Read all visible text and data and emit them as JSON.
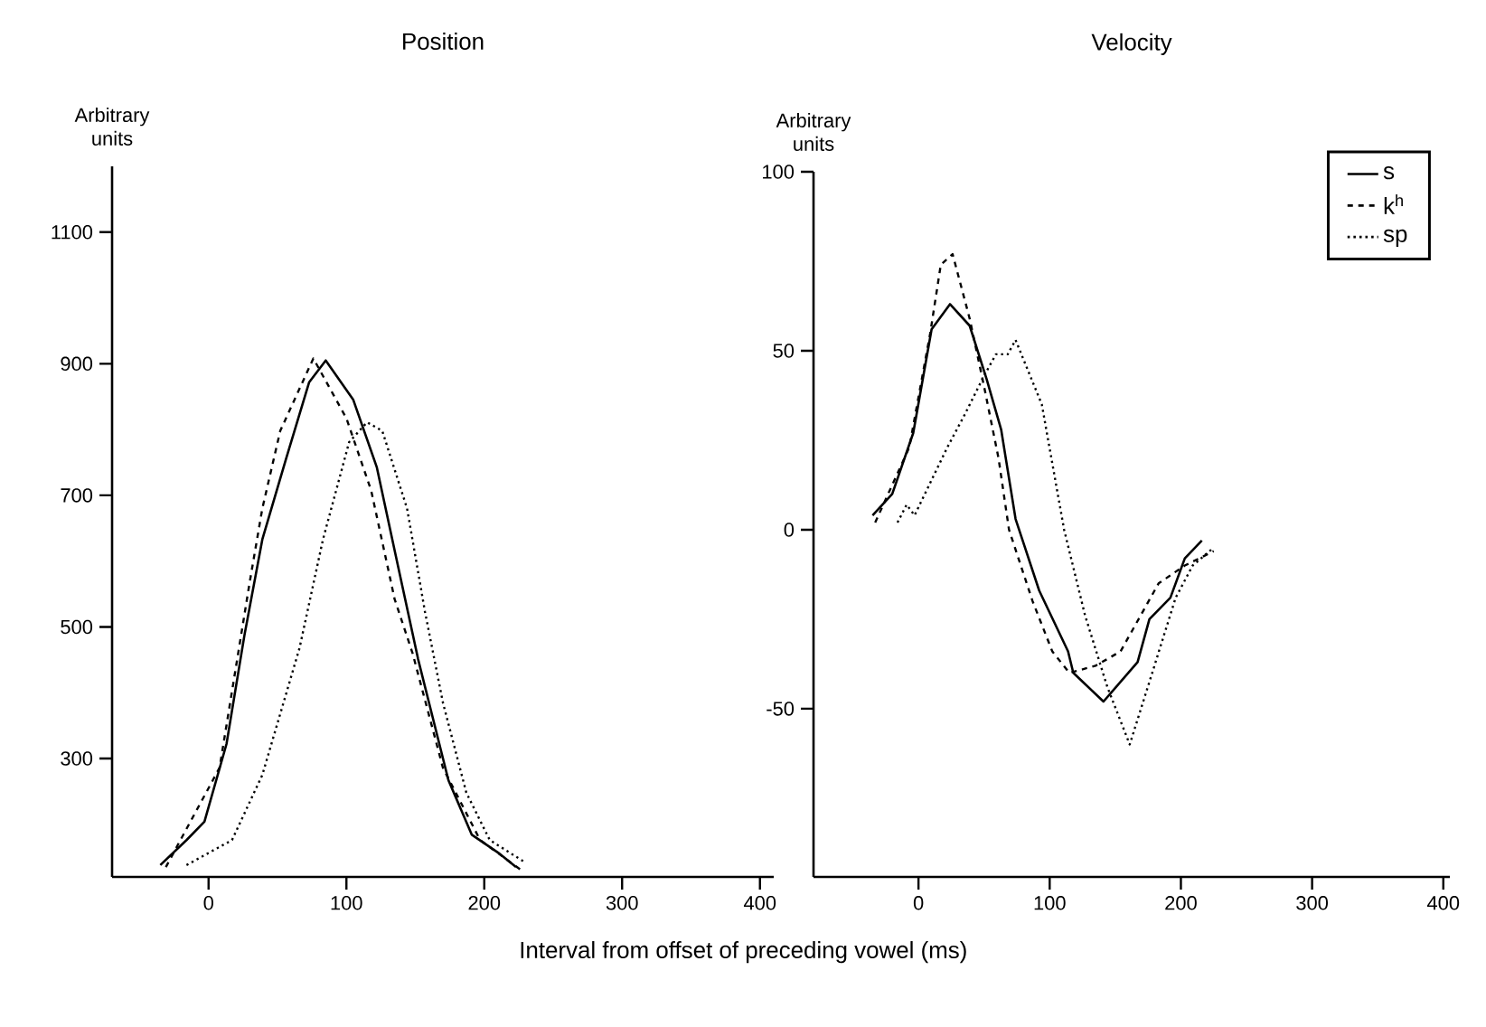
{
  "chart_data": [
    {
      "type": "line",
      "title": "Position",
      "ylabel": "Arbitrary units",
      "xlabel": "Interval from offset of preceding vowel (ms)",
      "xlim": [
        -70,
        410
      ],
      "ylim": [
        120,
        1200
      ],
      "xticks": [
        0,
        100,
        200,
        300,
        400
      ],
      "yticks": [
        300,
        500,
        700,
        900,
        1100
      ],
      "grid": false,
      "legend": false,
      "series": [
        {
          "color": "#000000",
          "line_style": "solid",
          "x": [
            -35,
            -16,
            -3,
            13,
            26,
            39,
            56,
            73,
            85,
            105,
            122,
            135,
            152,
            174,
            191,
            210,
            223
          ],
          "values": [
            138,
            176,
            204,
            322,
            487,
            633,
            754,
            872,
            905,
            845,
            743,
            616,
            451,
            267,
            184,
            157,
            135
          ]
        },
        {
          "color": "#000000",
          "line_style": "dashed",
          "x": [
            -31,
            8,
            30,
            39,
            52,
            76,
            100,
            118,
            135,
            148,
            170,
            197,
            227
          ],
          "values": [
            135,
            286,
            570,
            680,
            798,
            908,
            817,
            707,
            542,
            460,
            286,
            176,
            130
          ]
        },
        {
          "color": "#000000",
          "line_style": "dotted",
          "x": [
            -16,
            17,
            39,
            66,
            83,
            102,
            115,
            126,
            144,
            157,
            170,
            187,
            204,
            229
          ],
          "values": [
            138,
            176,
            275,
            468,
            633,
            781,
            811,
            798,
            680,
            523,
            385,
            248,
            176,
            143
          ]
        }
      ]
    },
    {
      "type": "line",
      "title": "Velocity",
      "ylabel": "Arbitrary units",
      "xlim": [
        -80,
        405
      ],
      "ylim": [
        -97,
        100
      ],
      "xticks": [
        0,
        100,
        200,
        300,
        400
      ],
      "yticks": [
        -50,
        0,
        50,
        100
      ],
      "grid": false,
      "legend": "top right",
      "series": [
        {
          "name": "s",
          "color": "#000000",
          "line_style": "solid",
          "x": [
            -35,
            -20,
            -4,
            10,
            24,
            39,
            52,
            63,
            74,
            92,
            114,
            118,
            141,
            167,
            176,
            192,
            203,
            216
          ],
          "values": [
            4,
            10,
            27,
            56,
            63,
            57,
            42,
            28,
            3,
            -17,
            -34,
            -40,
            -48,
            -37,
            -25,
            -19,
            -8,
            -3
          ]
        },
        {
          "name": "k$^{h}$",
          "color": "#000000",
          "line_style": "dashed",
          "x": [
            -33,
            -7,
            9,
            17,
            26,
            39,
            50,
            61,
            69,
            87,
            102,
            115,
            135,
            154,
            183,
            203,
            225
          ],
          "values": [
            2,
            23,
            55,
            74,
            77,
            59,
            40,
            20,
            0,
            -20,
            -34,
            -40,
            -38,
            -34,
            -15,
            -10,
            -6
          ]
        },
        {
          "name": "sp",
          "color": "#000000",
          "line_style": "dotted",
          "x": [
            -16,
            -9,
            -3,
            22,
            35,
            50,
            59,
            68,
            74,
            94,
            111,
            127,
            144,
            161,
            179,
            196,
            209,
            225
          ],
          "values": [
            2,
            7,
            4,
            23,
            32,
            43,
            49,
            49,
            53,
            35,
            0,
            -24,
            -44,
            -60,
            -39,
            -19,
            -10,
            -5
          ]
        }
      ]
    }
  ]
}
